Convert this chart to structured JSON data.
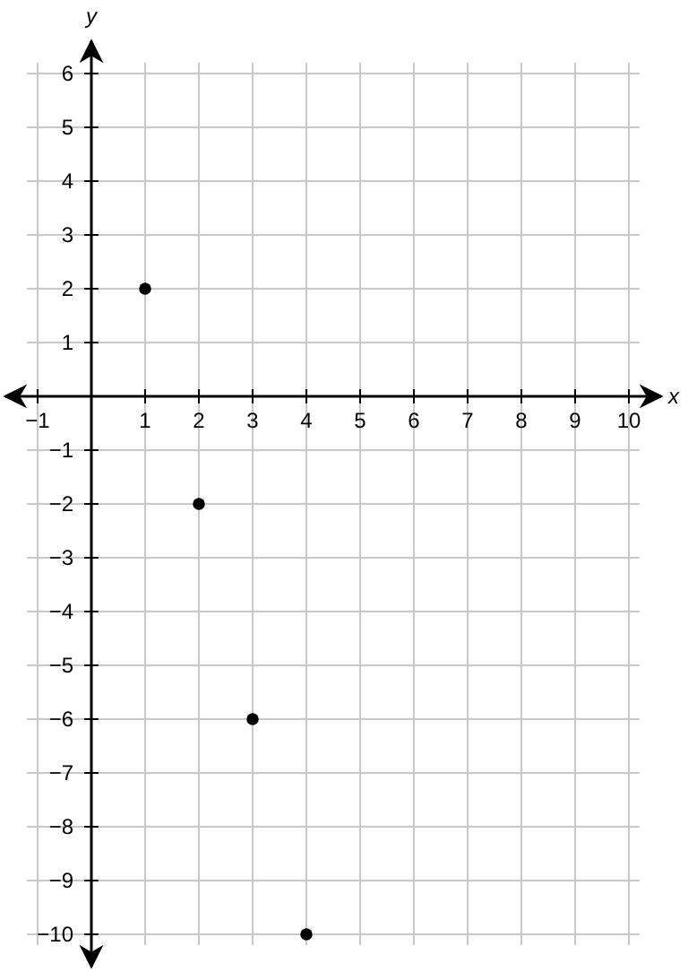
{
  "chart_data": {
    "type": "scatter",
    "xlabel": "x",
    "ylabel": "y",
    "series": [
      {
        "color": "#000000",
        "x": [
          1,
          2,
          3,
          4
        ],
        "values": [
          2,
          -2,
          -6,
          -10
        ]
      }
    ],
    "xlim": [
      -1,
      10
    ],
    "ylim": [
      -10,
      6
    ],
    "xticks": [
      -1,
      1,
      2,
      3,
      4,
      5,
      6,
      7,
      8,
      9,
      10
    ],
    "yticks": [
      -10,
      -9,
      -8,
      -7,
      -6,
      -5,
      -4,
      -3,
      -2,
      -1,
      1,
      2,
      3,
      4,
      5,
      6
    ],
    "grid": true,
    "marker": "circle"
  }
}
